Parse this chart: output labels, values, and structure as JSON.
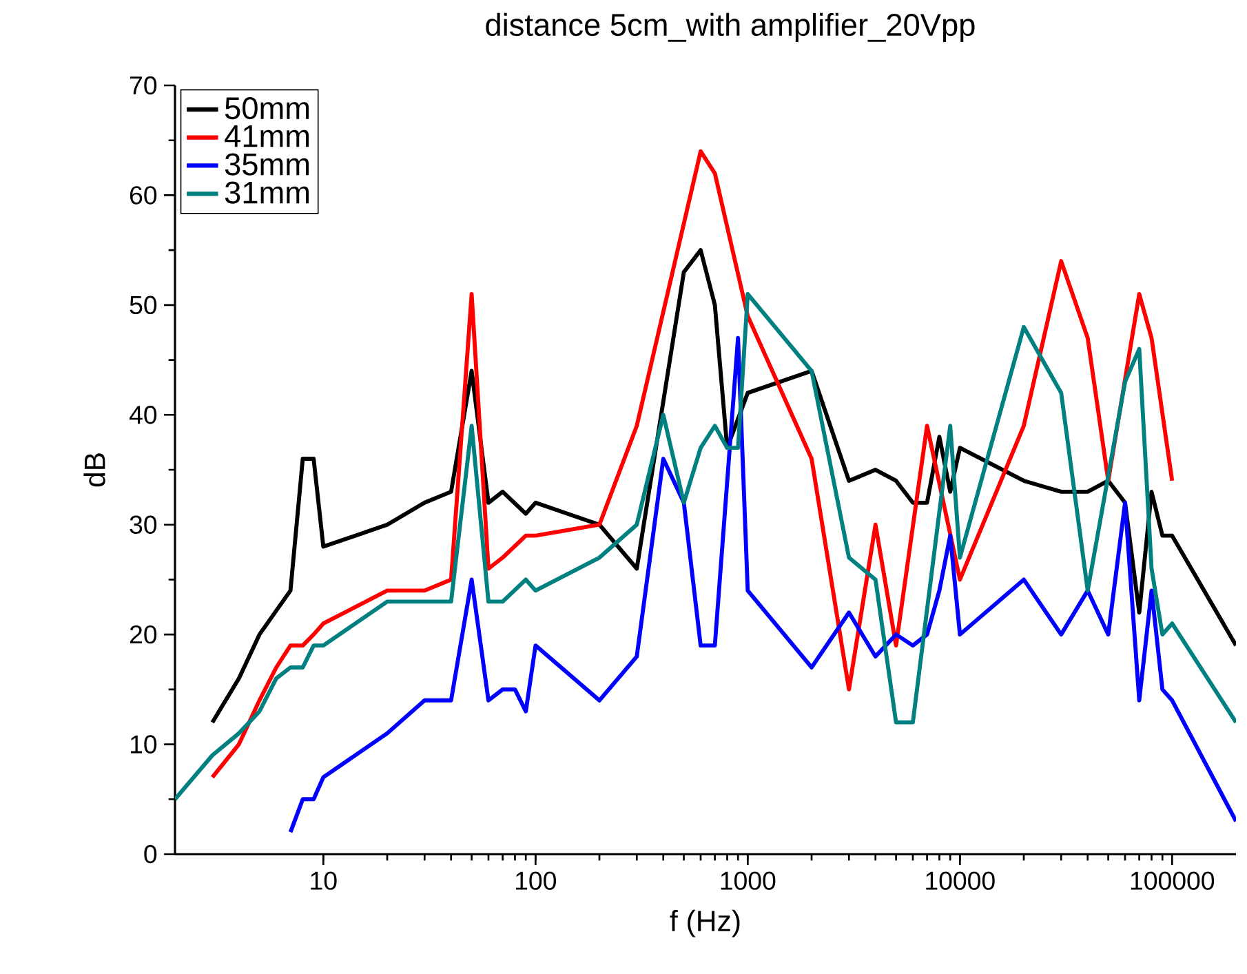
{
  "chart_data": {
    "type": "line",
    "title": "distance 5cm_with amplifier_20Vpp",
    "xlabel": "f (Hz)",
    "ylabel": "dB",
    "log": "x",
    "xlim": [
      2,
      200000
    ],
    "xticks": [
      10,
      100,
      1000,
      10000,
      100000
    ],
    "ylim": [
      0,
      70
    ],
    "yticks": [
      0,
      10,
      20,
      30,
      40,
      50,
      60,
      70
    ],
    "legend": "top left",
    "grid": false,
    "line_style": "solid",
    "marker": "none",
    "series": [
      {
        "name": "50mm",
        "color": "#000000",
        "x": [
          3,
          4,
          5,
          7,
          8,
          9,
          10,
          20,
          30,
          40,
          50,
          60,
          70,
          90,
          100,
          200,
          300,
          500,
          600,
          700,
          800,
          1000,
          2000,
          3000,
          4000,
          5000,
          6000,
          7000,
          8000,
          9000,
          10000,
          20000,
          30000,
          40000,
          50000,
          60000,
          70000,
          80000,
          90000,
          100000,
          200000
        ],
        "values": [
          12,
          16,
          20,
          24,
          36,
          36,
          28,
          30,
          32,
          33,
          44,
          32,
          33,
          31,
          32,
          30,
          26,
          53,
          55,
          50,
          37,
          42,
          44,
          34,
          35,
          34,
          32,
          32,
          38,
          33,
          37,
          34,
          33,
          33,
          34,
          32,
          22,
          33,
          29,
          29,
          19
        ]
      },
      {
        "name": "41mm",
        "color": "#ff0000",
        "x": [
          3,
          4,
          5,
          6,
          7,
          8,
          9,
          10,
          20,
          30,
          40,
          50,
          60,
          70,
          90,
          100,
          200,
          300,
          600,
          700,
          1000,
          2000,
          3000,
          4000,
          5000,
          7000,
          10000,
          20000,
          30000,
          40000,
          50000,
          70000,
          80000,
          100000
        ],
        "values": [
          7,
          10,
          14,
          17,
          19,
          19,
          20,
          21,
          24,
          24,
          25,
          51,
          26,
          27,
          29,
          29,
          30,
          39,
          64,
          62,
          49,
          36,
          15,
          30,
          19,
          39,
          25,
          39,
          54,
          47,
          34,
          51,
          47,
          34
        ]
      },
      {
        "name": "35mm",
        "color": "#0000ff",
        "x": [
          7,
          8,
          9,
          10,
          20,
          30,
          40,
          50,
          60,
          70,
          80,
          90,
          100,
          200,
          300,
          400,
          500,
          600,
          700,
          900,
          1000,
          2000,
          3000,
          4000,
          5000,
          6000,
          7000,
          8000,
          9000,
          10000,
          20000,
          30000,
          40000,
          50000,
          60000,
          70000,
          80000,
          90000,
          100000,
          200000
        ],
        "values": [
          2,
          5,
          5,
          7,
          11,
          14,
          14,
          25,
          14,
          15,
          15,
          13,
          19,
          14,
          18,
          36,
          32,
          19,
          19,
          47,
          24,
          17,
          22,
          18,
          20,
          19,
          20,
          24,
          29,
          20,
          25,
          20,
          24,
          20,
          32,
          14,
          24,
          15,
          14,
          3
        ]
      },
      {
        "name": "31mm",
        "color": "#008080",
        "x": [
          2,
          3,
          4,
          5,
          6,
          7,
          8,
          9,
          10,
          20,
          30,
          40,
          50,
          60,
          70,
          90,
          100,
          200,
          300,
          400,
          500,
          600,
          700,
          800,
          900,
          1000,
          2000,
          3000,
          4000,
          5000,
          6000,
          9000,
          10000,
          20000,
          30000,
          40000,
          60000,
          70000,
          80000,
          90000,
          100000,
          200000
        ],
        "values": [
          5,
          9,
          11,
          13,
          16,
          17,
          17,
          19,
          19,
          23,
          23,
          23,
          39,
          23,
          23,
          25,
          24,
          27,
          30,
          40,
          32,
          37,
          39,
          37,
          37,
          51,
          44,
          27,
          25,
          12,
          12,
          39,
          27,
          48,
          42,
          24,
          43,
          46,
          26,
          20,
          21,
          12
        ]
      }
    ]
  }
}
